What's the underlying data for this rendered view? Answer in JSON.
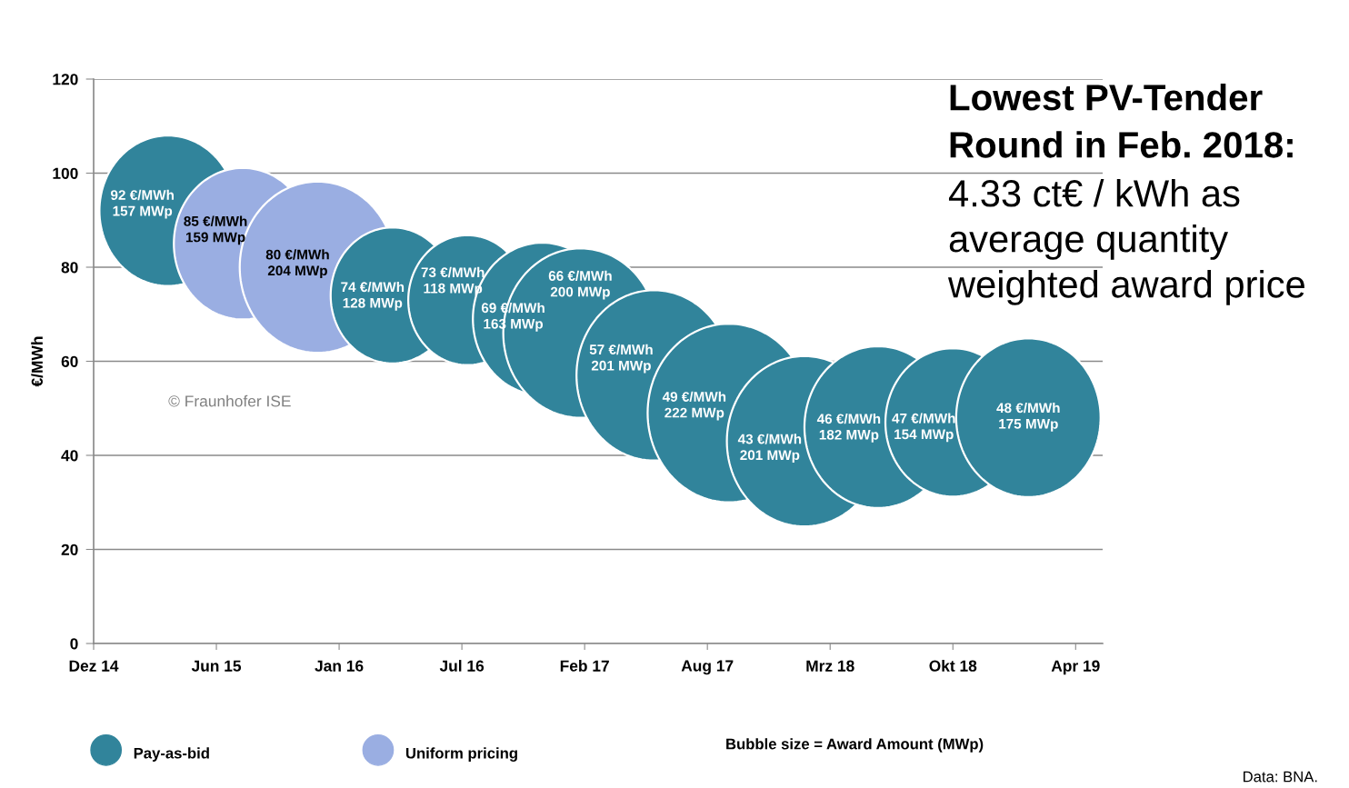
{
  "chart_data": {
    "type": "bubble",
    "title": "Lowest PV-Tender Round in Feb. 2018:",
    "subtitle": "4.33 ct€ / kWh as average quantity weighted award price",
    "ylabel": "€/MWh",
    "annotations": [
      "© Fraunhofer ISE",
      "Bubble size = Award Amount (MWp)",
      "Data: BNA."
    ],
    "series": [
      {
        "name": "Pay-as-bid",
        "color": "#31849b",
        "x": [
          "2015-04-01",
          "2016-04-01",
          "2016-08-01",
          "2016-12-01",
          "2017-02-01",
          "2017-06-01",
          "2017-10-01",
          "2018-02-01",
          "2018-06-01",
          "2018-10-01",
          "2019-02-01"
        ],
        "values": [
          92,
          74,
          73,
          69,
          66,
          57,
          49,
          43,
          46,
          47,
          48
        ],
        "sizes": [
          0.71,
          0.58,
          0.53,
          0.73,
          0.9,
          0.91,
          1,
          0.91,
          0.82,
          0.69,
          0.79
        ],
        "value_labels": [
          "92 €/MWh\n157 MWp",
          "74 €/MWh\n128 MWp",
          "73 €/MWh\n118 MWp",
          "69 €/MWh\n163 MWp",
          "66 €/MWh\n200 MWp",
          "57 €/MWh\n201 MWp",
          "49 €/MWh\n222 MWp",
          "43 €/MWh\n201 MWp",
          "46 €/MWh\n182 MWp",
          "47 €/MWh\n154 MWp",
          "48 €/MWh\n175 MWp"
        ]
      },
      {
        "name": "Uniform pricing",
        "color": "#9aaee2",
        "x": [
          "2015-08-01",
          "2015-12-01"
        ],
        "values": [
          85,
          80
        ],
        "sizes": [
          0.72,
          0.92
        ],
        "value_labels": [
          "85 €/MWh\n159 MWp",
          "80 €/MWh\n204 MWp"
        ]
      }
    ],
    "xlim": [
      "2014-12-01",
      "2019-06-02"
    ],
    "xticks": [
      {
        "value": "2014-12-01",
        "label": "Dez 14"
      },
      {
        "value": "2015-06-19",
        "label": "Jun 15"
      },
      {
        "value": "2016-01-05",
        "label": "Jan 16"
      },
      {
        "value": "2016-07-23",
        "label": "Jul 16"
      },
      {
        "value": "2017-02-08",
        "label": "Feb 17"
      },
      {
        "value": "2017-08-27",
        "label": "Aug 17"
      },
      {
        "value": "2018-03-15",
        "label": "Mrz 18"
      },
      {
        "value": "2018-10-01",
        "label": "Okt 18"
      },
      {
        "value": "2019-04-19",
        "label": "Apr 19"
      }
    ],
    "ylim": [
      0,
      120
    ],
    "yticks": [
      0,
      20,
      40,
      60,
      80,
      100,
      120
    ],
    "grid": "y",
    "legend": "bottom"
  }
}
